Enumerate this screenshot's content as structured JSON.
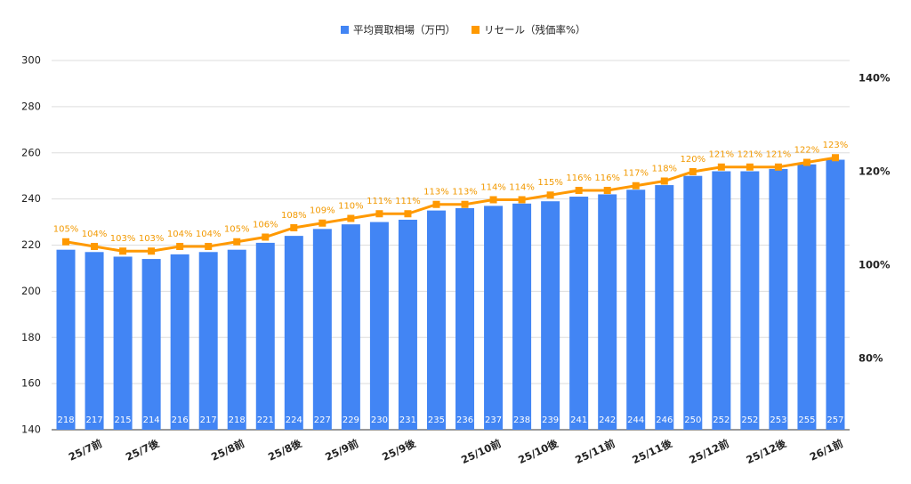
{
  "chart_data": {
    "type": "combo",
    "categories": [
      null,
      "25/7前",
      null,
      "25/7後",
      null,
      null,
      "25/8前",
      null,
      "25/8後",
      null,
      "25/9前",
      null,
      "25/9後",
      null,
      null,
      "25/10前",
      null,
      "25/10後",
      null,
      "25/11前",
      null,
      "25/11後",
      null,
      "25/12前",
      null,
      "25/12後",
      null,
      "26/1前"
    ],
    "series": [
      {
        "name": "平均買取相場（万円）",
        "type": "bar",
        "color": "#4285f4",
        "values": [
          218,
          217,
          215,
          214,
          216,
          217,
          218,
          221,
          224,
          227,
          229,
          230,
          231,
          235,
          236,
          237,
          238,
          239,
          241,
          242,
          244,
          246,
          250,
          252,
          252,
          253,
          255,
          257
        ]
      },
      {
        "name": "リセール（残価率%）",
        "type": "line",
        "axis": "y2",
        "color": "#ff9900",
        "values": [
          105,
          104,
          103,
          103,
          104,
          104,
          105,
          106,
          108,
          109,
          110,
          111,
          111,
          113,
          113,
          114,
          114,
          115,
          116,
          116,
          117,
          118,
          120,
          121,
          121,
          121,
          122,
          123
        ],
        "value_labels": [
          "105%",
          "104%",
          "103%",
          "103%",
          "104%",
          "104%",
          "105%",
          "106%",
          "108%",
          "109%",
          "110%",
          "111%",
          "111%",
          "113%",
          "113%",
          "114%",
          "114%",
          "115%",
          "116%",
          "116%",
          "117%",
          "118%",
          "120%",
          "121%",
          "121%",
          "121%",
          "122%",
          "123%"
        ]
      }
    ],
    "ylim": [
      140,
      300
    ],
    "yticks": [
      140,
      160,
      180,
      200,
      220,
      240,
      260,
      280,
      300
    ],
    "y2lim": [
      64.76,
      143.81
    ],
    "y2ticks": [
      {
        "value": 80,
        "label": "80%"
      },
      {
        "value": 100,
        "label": "100%"
      },
      {
        "value": 120,
        "label": "120%"
      },
      {
        "value": 140,
        "label": "140%"
      }
    ],
    "grid": true,
    "legend": "top"
  }
}
